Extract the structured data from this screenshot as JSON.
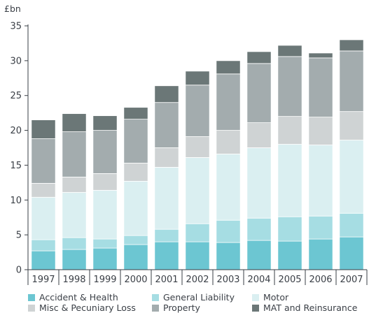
{
  "chart_data": {
    "type": "bar",
    "stacked": true,
    "unit_label": "£bn",
    "ylim": [
      0,
      35
    ],
    "yticks": [
      "0",
      "5",
      "10",
      "15",
      "20",
      "25",
      "30",
      "35"
    ],
    "categories": [
      "1997",
      "1998",
      "1999",
      "2000",
      "2001",
      "2002",
      "2003",
      "2004",
      "2005",
      "2006",
      "2007"
    ],
    "series": [
      {
        "name": "Accident & Health",
        "color": "#6cc6d2",
        "values": [
          2.7,
          2.9,
          3.1,
          3.6,
          4.0,
          4.0,
          3.9,
          4.2,
          4.1,
          4.4,
          4.7
        ]
      },
      {
        "name": "General Liability",
        "color": "#a6dde3",
        "values": [
          1.6,
          1.7,
          1.3,
          1.3,
          1.8,
          2.6,
          3.2,
          3.2,
          3.5,
          3.3,
          3.4
        ]
      },
      {
        "name": "Motor",
        "color": "#daeff1",
        "values": [
          6.1,
          6.5,
          7.0,
          7.8,
          8.9,
          9.5,
          9.5,
          10.1,
          10.4,
          10.2,
          10.5
        ]
      },
      {
        "name": "Misc & Pecuniary Loss",
        "color": "#cfd3d4",
        "values": [
          2.0,
          2.2,
          2.4,
          2.6,
          2.8,
          3.0,
          3.4,
          3.6,
          4.0,
          4.0,
          4.1
        ]
      },
      {
        "name": "Property",
        "color": "#a3acae",
        "values": [
          6.4,
          6.5,
          6.2,
          6.3,
          6.5,
          7.4,
          8.1,
          8.5,
          8.6,
          8.5,
          8.7
        ]
      },
      {
        "name": "MAT and Reinsurance",
        "color": "#6b7777",
        "values": [
          2.7,
          2.6,
          2.1,
          1.7,
          2.4,
          2.0,
          1.9,
          1.7,
          1.6,
          0.7,
          1.6
        ]
      }
    ],
    "legend_position": "bottom",
    "grid": false
  }
}
